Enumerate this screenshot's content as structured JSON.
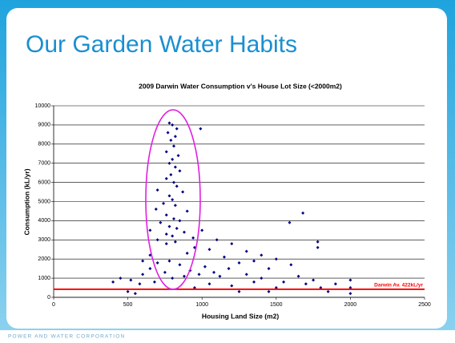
{
  "slide_title": "Our Garden Water Habits",
  "footer": "POWER AND WATER CORPORATION",
  "chart_data": {
    "type": "scatter",
    "title": "2009 Darwin Water Consumption v's House Lot Size (<2000m2)",
    "x_label": "Housing Land Size (m2)",
    "y_label": "Consumption (kL/yr)",
    "color": "#000080",
    "xlim": [
      0,
      2500
    ],
    "xticks": [
      0,
      500,
      1000,
      1500,
      2000,
      2500
    ],
    "ylim": [
      0,
      10000
    ],
    "yticks": [
      0,
      1000,
      2000,
      3000,
      4000,
      5000,
      6000,
      7000,
      8000,
      9000,
      10000
    ],
    "grid": true,
    "reference_line": {
      "value": 422,
      "label": "Darwin Av. 422kL/yr",
      "color": "#ff0000"
    },
    "x": [
      780,
      800,
      830,
      990,
      770,
      820,
      790,
      810,
      760,
      840,
      800,
      780,
      820,
      850,
      790,
      760,
      810,
      830,
      700,
      870,
      780,
      800,
      740,
      820,
      690,
      900,
      760,
      810,
      850,
      720,
      780,
      830,
      650,
      880,
      760,
      800,
      940,
      700,
      820,
      760,
      1000,
      1100,
      1200,
      1300,
      1400,
      1680,
      1590,
      1780,
      1780,
      1500,
      1350,
      1600,
      1450,
      1250,
      1150,
      1050,
      950,
      900,
      650,
      600,
      400,
      450,
      500,
      520,
      550,
      580,
      600,
      650,
      680,
      700,
      750,
      780,
      800,
      850,
      880,
      920,
      950,
      980,
      1020,
      1050,
      1080,
      1120,
      1180,
      1200,
      1250,
      1300,
      1350,
      1400,
      1450,
      1500,
      1550,
      1650,
      1700,
      1750,
      1800,
      1900,
      2000,
      2000,
      2000,
      1850
    ],
    "values": [
      9100,
      9000,
      8800,
      8800,
      8600,
      8400,
      8200,
      7900,
      7600,
      7400,
      7200,
      7000,
      6800,
      6600,
      6400,
      6200,
      6000,
      5800,
      5600,
      5500,
      5300,
      5100,
      4900,
      4800,
      4600,
      4500,
      4300,
      4100,
      4000,
      3900,
      3700,
      3600,
      3500,
      3400,
      3300,
      3200,
      3100,
      3000,
      2900,
      2800,
      3500,
      3000,
      2800,
      2400,
      2200,
      4400,
      3900,
      2900,
      2600,
      2000,
      1900,
      1700,
      1500,
      1800,
      2100,
      2500,
      2600,
      2300,
      2200,
      1900,
      800,
      1000,
      300,
      900,
      200,
      700,
      1200,
      1500,
      800,
      1800,
      1300,
      1900,
      1000,
      1700,
      1100,
      1400,
      500,
      1200,
      1600,
      700,
      1300,
      1100,
      1500,
      600,
      300,
      1200,
      800,
      1000,
      300,
      500,
      800,
      1100,
      700,
      900,
      500,
      700,
      900,
      500,
      200,
      300
    ]
  }
}
